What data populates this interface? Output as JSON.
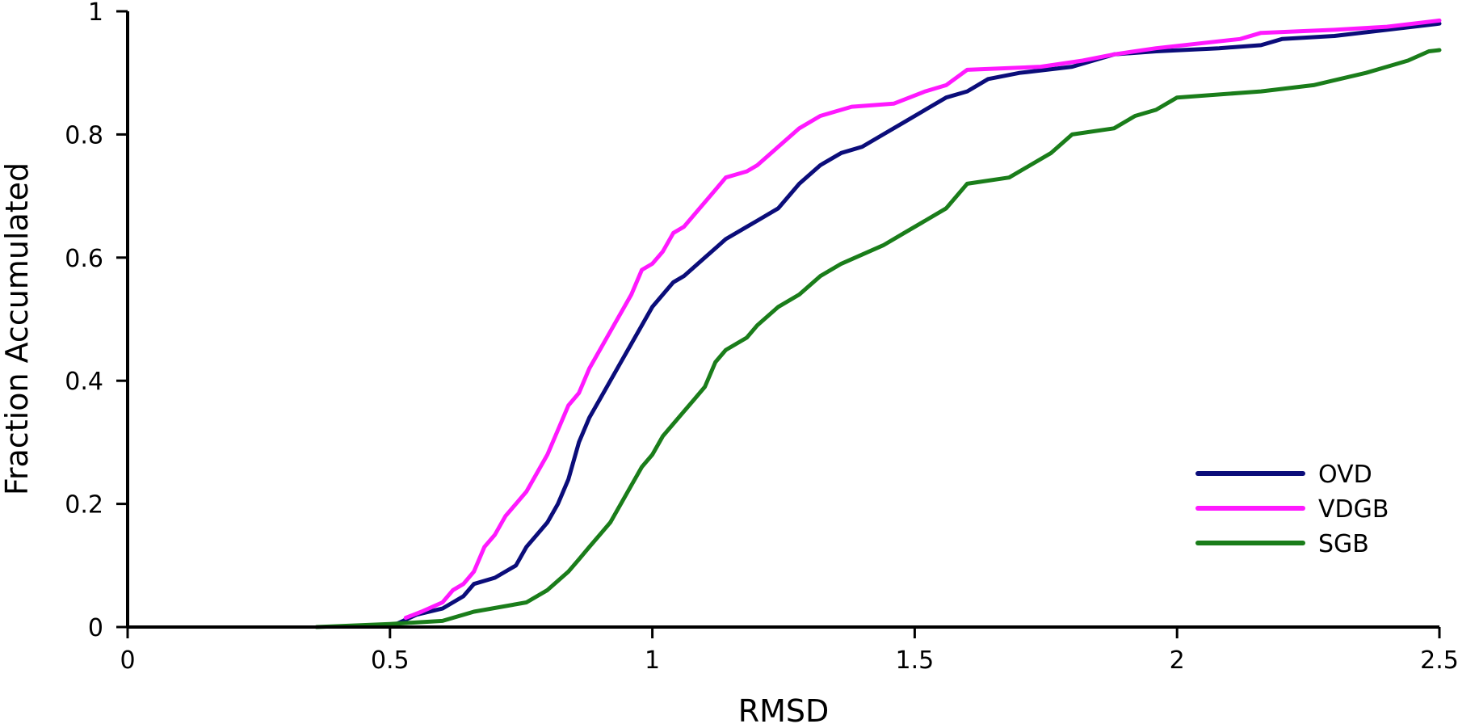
{
  "chart_data": {
    "type": "line",
    "title": "",
    "xlabel": "RMSD",
    "ylabel": "Fraction Accumulated",
    "xlim": [
      0,
      2.5
    ],
    "ylim": [
      0,
      1
    ],
    "xticks": [
      0,
      0.5,
      1,
      1.5,
      2,
      2.5
    ],
    "xtick_labels": [
      "0",
      "0.5",
      "1",
      "1.5",
      "2",
      "2.5"
    ],
    "yticks": [
      0,
      0.2,
      0.4,
      0.6,
      0.8,
      1
    ],
    "ytick_labels": [
      "0",
      "0.2",
      "0.4",
      "0.6",
      "0.8",
      "1"
    ],
    "grid": false,
    "legend_position": "bottom-right",
    "series": [
      {
        "name": "OVD",
        "color": "#0b0d7a",
        "x": [
          0.5,
          0.55,
          0.6,
          0.64,
          0.66,
          0.7,
          0.74,
          0.76,
          0.78,
          0.8,
          0.82,
          0.84,
          0.86,
          0.88,
          0.9,
          0.92,
          0.94,
          0.96,
          0.98,
          1.0,
          1.02,
          1.04,
          1.06,
          1.1,
          1.14,
          1.18,
          1.2,
          1.24,
          1.28,
          1.32,
          1.36,
          1.4,
          1.44,
          1.48,
          1.52,
          1.56,
          1.6,
          1.64,
          1.7,
          1.8,
          1.84,
          1.88,
          1.96,
          2.08,
          2.16,
          2.2,
          2.3,
          2.4,
          2.5
        ],
        "y": [
          0.0,
          0.02,
          0.03,
          0.05,
          0.07,
          0.08,
          0.1,
          0.13,
          0.15,
          0.17,
          0.2,
          0.24,
          0.3,
          0.34,
          0.37,
          0.4,
          0.43,
          0.46,
          0.49,
          0.52,
          0.54,
          0.56,
          0.57,
          0.6,
          0.63,
          0.65,
          0.66,
          0.68,
          0.72,
          0.75,
          0.77,
          0.78,
          0.8,
          0.82,
          0.84,
          0.86,
          0.87,
          0.89,
          0.9,
          0.91,
          0.92,
          0.93,
          0.935,
          0.94,
          0.945,
          0.955,
          0.96,
          0.97,
          0.98
        ]
      },
      {
        "name": "VDGB",
        "color": "#ff19ff",
        "x": [
          0.53,
          0.56,
          0.6,
          0.62,
          0.64,
          0.66,
          0.68,
          0.7,
          0.72,
          0.74,
          0.76,
          0.78,
          0.8,
          0.82,
          0.84,
          0.86,
          0.88,
          0.9,
          0.92,
          0.94,
          0.96,
          0.98,
          1.0,
          1.02,
          1.04,
          1.06,
          1.08,
          1.1,
          1.12,
          1.14,
          1.16,
          1.18,
          1.2,
          1.24,
          1.28,
          1.32,
          1.36,
          1.38,
          1.46,
          1.52,
          1.56,
          1.6,
          1.74,
          1.82,
          1.88,
          1.96,
          2.12,
          2.16,
          2.3,
          2.4,
          2.5
        ],
        "y": [
          0.015,
          0.025,
          0.04,
          0.06,
          0.07,
          0.09,
          0.13,
          0.15,
          0.18,
          0.2,
          0.22,
          0.25,
          0.28,
          0.32,
          0.36,
          0.38,
          0.42,
          0.45,
          0.48,
          0.51,
          0.54,
          0.58,
          0.59,
          0.61,
          0.64,
          0.65,
          0.67,
          0.69,
          0.71,
          0.73,
          0.735,
          0.74,
          0.75,
          0.78,
          0.81,
          0.83,
          0.84,
          0.845,
          0.85,
          0.87,
          0.88,
          0.905,
          0.91,
          0.92,
          0.93,
          0.94,
          0.955,
          0.965,
          0.97,
          0.975,
          0.985
        ]
      },
      {
        "name": "SGB",
        "color": "#1a7d1a",
        "x": [
          0.36,
          0.5,
          0.6,
          0.66,
          0.76,
          0.8,
          0.84,
          0.86,
          0.88,
          0.9,
          0.92,
          0.94,
          0.96,
          0.98,
          1.0,
          1.02,
          1.04,
          1.06,
          1.08,
          1.1,
          1.12,
          1.14,
          1.16,
          1.18,
          1.2,
          1.24,
          1.28,
          1.32,
          1.36,
          1.44,
          1.48,
          1.52,
          1.56,
          1.6,
          1.68,
          1.72,
          1.76,
          1.8,
          1.88,
          1.92,
          1.96,
          2.0,
          2.16,
          2.26,
          2.36,
          2.4,
          2.44,
          2.48,
          2.5
        ],
        "y": [
          0.0,
          0.005,
          0.01,
          0.025,
          0.04,
          0.06,
          0.09,
          0.11,
          0.13,
          0.15,
          0.17,
          0.2,
          0.23,
          0.26,
          0.28,
          0.31,
          0.33,
          0.35,
          0.37,
          0.39,
          0.43,
          0.45,
          0.46,
          0.47,
          0.49,
          0.52,
          0.54,
          0.57,
          0.59,
          0.62,
          0.64,
          0.66,
          0.68,
          0.72,
          0.73,
          0.75,
          0.77,
          0.8,
          0.81,
          0.83,
          0.84,
          0.86,
          0.87,
          0.88,
          0.9,
          0.91,
          0.92,
          0.935,
          0.937
        ]
      }
    ]
  }
}
